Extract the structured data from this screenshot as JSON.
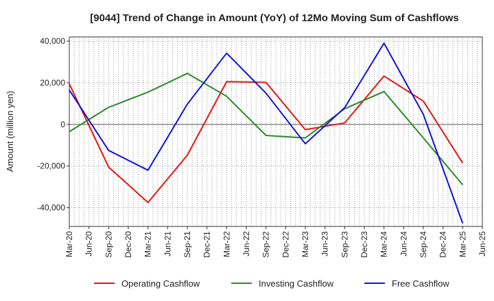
{
  "chart_data": {
    "type": "line",
    "title": "[9044]  Trend of Change in Amount (YoY) of 12Mo Moving Sum of Cashflows",
    "xlabel": "",
    "ylabel": "Amount (million yen)",
    "ylim": [
      -49000,
      42000
    ],
    "yticks": [
      40000,
      20000,
      0,
      -20000,
      -40000
    ],
    "ytick_labels": [
      "40,000",
      "20,000",
      "0",
      "-20,000",
      "-40,000"
    ],
    "categories": [
      "Mar-20",
      "Jun-20",
      "Sep-20",
      "Dec-20",
      "Mar-21",
      "Jun-21",
      "Sep-21",
      "Dec-21",
      "Mar-22",
      "Jun-22",
      "Sep-22",
      "Dec-22",
      "Mar-23",
      "Jun-23",
      "Sep-23",
      "Dec-23",
      "Mar-24",
      "Jun-24",
      "Sep-24",
      "Dec-24",
      "Mar-25",
      "Jun-25"
    ],
    "grid": true,
    "legend_position": "bottom",
    "series": [
      {
        "name": "Operating Cashflow",
        "color": "#e8140f",
        "values": [
          19500,
          null,
          -20500,
          null,
          -37500,
          null,
          -14800,
          null,
          20500,
          null,
          20200,
          null,
          -2500,
          null,
          700,
          null,
          23200,
          null,
          11200,
          null,
          -18500,
          null
        ]
      },
      {
        "name": "Investing Cashflow",
        "color": "#2a8a2a",
        "values": [
          -3500,
          null,
          8200,
          null,
          15500,
          null,
          24500,
          null,
          13500,
          null,
          -5300,
          null,
          -6500,
          null,
          7500,
          null,
          15800,
          null,
          -6500,
          null,
          -29000,
          null
        ]
      },
      {
        "name": "Free Cashflow",
        "color": "#1010d8",
        "values": [
          16500,
          null,
          -12500,
          null,
          -22000,
          null,
          9700,
          null,
          34200,
          null,
          15000,
          null,
          -9300,
          null,
          8000,
          null,
          39000,
          null,
          4800,
          null,
          -47500,
          null
        ]
      }
    ]
  }
}
